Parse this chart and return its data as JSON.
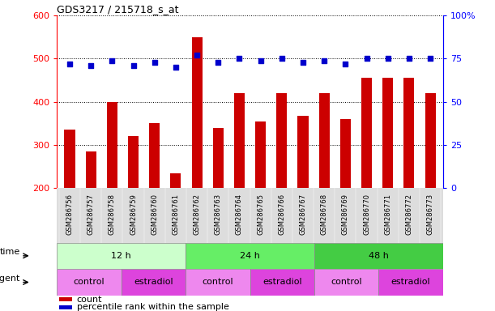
{
  "title": "GDS3217 / 215718_s_at",
  "samples": [
    "GSM286756",
    "GSM286757",
    "GSM286758",
    "GSM286759",
    "GSM286760",
    "GSM286761",
    "GSM286762",
    "GSM286763",
    "GSM286764",
    "GSM286765",
    "GSM286766",
    "GSM286767",
    "GSM286768",
    "GSM286769",
    "GSM286770",
    "GSM286771",
    "GSM286772",
    "GSM286773"
  ],
  "count_values": [
    335,
    285,
    400,
    320,
    350,
    235,
    550,
    340,
    420,
    355,
    420,
    368,
    420,
    360,
    455,
    455,
    455,
    420
  ],
  "percentile_values": [
    72,
    71,
    74,
    71,
    73,
    70,
    77,
    73,
    75,
    74,
    75,
    73,
    74,
    72,
    75,
    75,
    75,
    75
  ],
  "ylim_left": [
    200,
    600
  ],
  "ylim_right": [
    0,
    100
  ],
  "yticks_left": [
    200,
    300,
    400,
    500,
    600
  ],
  "yticks_right": [
    0,
    25,
    50,
    75,
    100
  ],
  "bar_color": "#cc0000",
  "dot_color": "#0000cc",
  "time_groups": [
    {
      "label": "12 h",
      "start": 0,
      "end": 6,
      "color": "#ccffcc"
    },
    {
      "label": "24 h",
      "start": 6,
      "end": 12,
      "color": "#66ee66"
    },
    {
      "label": "48 h",
      "start": 12,
      "end": 18,
      "color": "#44cc44"
    }
  ],
  "agent_groups": [
    {
      "label": "control",
      "start": 0,
      "end": 3,
      "color": "#ee88ee"
    },
    {
      "label": "estradiol",
      "start": 3,
      "end": 6,
      "color": "#dd44dd"
    },
    {
      "label": "control",
      "start": 6,
      "end": 9,
      "color": "#ee88ee"
    },
    {
      "label": "estradiol",
      "start": 9,
      "end": 12,
      "color": "#dd44dd"
    },
    {
      "label": "control",
      "start": 12,
      "end": 15,
      "color": "#ee88ee"
    },
    {
      "label": "estradiol",
      "start": 15,
      "end": 18,
      "color": "#dd44dd"
    }
  ],
  "bar_width": 0.5,
  "label_bg_color": "#dddddd",
  "fig_width": 6.11,
  "fig_height": 3.84,
  "dpi": 100
}
